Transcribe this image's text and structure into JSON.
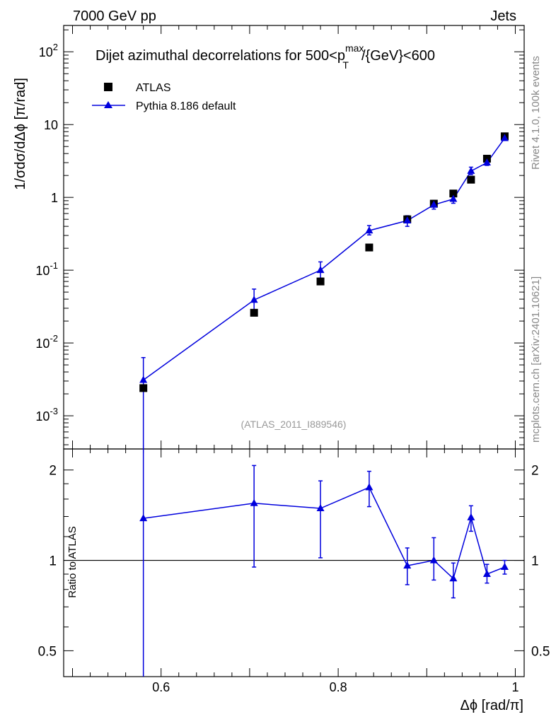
{
  "header": {
    "left": "7000 GeV pp",
    "right": "Jets"
  },
  "side": {
    "rivet": "Rivet 4.1.0,  100k events",
    "site": "mcplots.cern.ch [arXiv:2401.10621]"
  },
  "chart_data": {
    "type": "scatter",
    "title": "Dijet azimuthal decorrelations for 500<p_T^max/{GeV}<600",
    "title_parts": {
      "pre": "Dijet azimuthal decorrelations for 500<p",
      "sup": "max",
      "sub": "T",
      "post": "/{GeV}<600"
    },
    "watermark": "(ATLAS_2011_I889546)",
    "xlabel": "Δϕ [rad/π]",
    "ylabel": "1/σdσ/dΔϕ [π/rad]",
    "ratio_ylabel": "Ratio to ATLAS",
    "xlim": [
      0.49,
      1.01
    ],
    "ylim": [
      0.00035,
      230
    ],
    "yscale": "log",
    "ratio_ylim": [
      0.41,
      2.35
    ],
    "ratio_yscale": "log",
    "x_ticks": [
      0.6,
      0.8,
      1.0
    ],
    "x_tick_labels": [
      "0.6",
      "0.8",
      "1"
    ],
    "y_tick_labels": [
      "10^-3",
      "10^-2",
      "10^-1",
      "1",
      "10",
      "10^2"
    ],
    "ratio_ticks": [
      0.5,
      1,
      2
    ],
    "ratio_tick_labels": [
      "0.5",
      "1",
      "2"
    ],
    "legend": [
      {
        "name": "ATLAS",
        "marker": "square",
        "color": "#000000"
      },
      {
        "name": "Pythia 8.186 default",
        "marker": "triangle",
        "color": "#0000dd"
      }
    ],
    "x": [
      0.58,
      0.705,
      0.78,
      0.835,
      0.878,
      0.908,
      0.93,
      0.95,
      0.968,
      0.988
    ],
    "series": [
      {
        "name": "ATLAS",
        "values": [
          0.0024,
          0.026,
          0.07,
          0.205,
          0.5,
          0.82,
          1.13,
          1.75,
          3.4,
          6.9
        ]
      },
      {
        "name": "Pythia 8.186 default",
        "values": [
          0.0031,
          0.039,
          0.1,
          0.35,
          0.48,
          0.79,
          0.95,
          2.3,
          3.0,
          6.5
        ],
        "err_low": [
          0.0031,
          0.012,
          0.022,
          0.045,
          0.08,
          0.1,
          0.12,
          0.25,
          0.25,
          0.4
        ],
        "err_high": [
          0.0032,
          0.016,
          0.03,
          0.06,
          0.08,
          0.12,
          0.15,
          0.3,
          0.3,
          0.5
        ]
      }
    ],
    "ratio": {
      "values": [
        1.38,
        1.55,
        1.49,
        1.75,
        0.96,
        1.0,
        0.87,
        1.39,
        0.9,
        0.95
      ],
      "err_low": [
        1.38,
        0.6,
        0.47,
        0.24,
        0.13,
        0.14,
        0.12,
        0.14,
        0.06,
        0.05
      ],
      "err_high": [
        2.0,
        0.52,
        0.35,
        0.23,
        0.14,
        0.19,
        0.11,
        0.13,
        0.07,
        0.05
      ]
    }
  }
}
